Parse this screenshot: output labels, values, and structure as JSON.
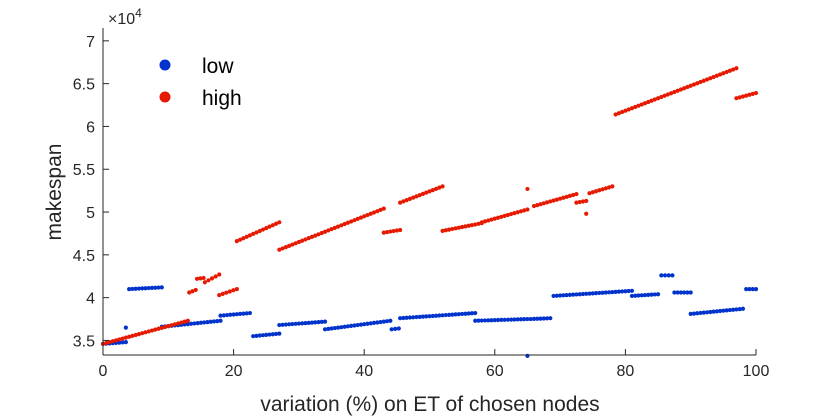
{
  "chart_data": {
    "type": "scatter",
    "xlabel": "variation (%) on ET of chosen nodes",
    "ylabel": "makespan",
    "exponent_label": "×10",
    "exponent_power": "4",
    "xlim": [
      0,
      100
    ],
    "ylim": [
      33300,
      71500
    ],
    "xticks": [
      0,
      20,
      40,
      60,
      80,
      100
    ],
    "xtick_labels": [
      "0",
      "20",
      "40",
      "60",
      "80",
      "100"
    ],
    "yticks": [
      35000,
      40000,
      45000,
      50000,
      55000,
      60000,
      65000,
      70000
    ],
    "ytick_labels": [
      "3.5",
      "4",
      "4.5",
      "5",
      "5.5",
      "6",
      "6.5",
      "7"
    ],
    "grid": false,
    "legend_position": "top-left",
    "series": [
      {
        "name": "low",
        "color": "#0033cc",
        "segments": [
          {
            "x": [
              0,
              3.5
            ],
            "y": [
              34600,
              34800
            ]
          },
          {
            "x": [
              4,
              9
            ],
            "y": [
              41000,
              41200
            ]
          },
          {
            "x": [
              9,
              18
            ],
            "y": [
              36600,
              37300
            ]
          },
          {
            "x": [
              18,
              22.5
            ],
            "y": [
              37900,
              38200
            ]
          },
          {
            "x": [
              23,
              27
            ],
            "y": [
              35500,
              35800
            ]
          },
          {
            "x": [
              27,
              34
            ],
            "y": [
              36800,
              37200
            ]
          },
          {
            "x": [
              34,
              44
            ],
            "y": [
              36300,
              37300
            ]
          },
          {
            "x": [
              44.2,
              45.3
            ],
            "y": [
              36300,
              36400
            ]
          },
          {
            "x": [
              45.5,
              57
            ],
            "y": [
              37600,
              38200
            ]
          },
          {
            "x": [
              57,
              65
            ],
            "y": [
              37300,
              37500
            ]
          },
          {
            "x": [
              65.5,
              68.5
            ],
            "y": [
              37500,
              37600
            ]
          },
          {
            "x": [
              69,
              81
            ],
            "y": [
              40200,
              40800
            ]
          },
          {
            "x": [
              81,
              85
            ],
            "y": [
              40200,
              40400
            ]
          },
          {
            "x": [
              85.5,
              87.2
            ],
            "y": [
              42600,
              42600
            ]
          },
          {
            "x": [
              87.5,
              90
            ],
            "y": [
              40600,
              40600
            ]
          },
          {
            "x": [
              90,
              98
            ],
            "y": [
              38100,
              38700
            ]
          },
          {
            "x": [
              98.5,
              100
            ],
            "y": [
              41000,
              41000
            ]
          }
        ],
        "points": [
          {
            "x": 3.5,
            "y": 36500
          },
          {
            "x": 65,
            "y": 33200
          }
        ]
      },
      {
        "name": "high",
        "color": "#e61a00",
        "segments": [
          {
            "x": [
              0,
              13
            ],
            "y": [
              34600,
              37300
            ]
          },
          {
            "x": [
              13.2,
              14.2
            ],
            "y": [
              40600,
              40900
            ]
          },
          {
            "x": [
              14.4,
              15.4
            ],
            "y": [
              42200,
              42300
            ]
          },
          {
            "x": [
              15.6,
              17.8
            ],
            "y": [
              41800,
              42700
            ]
          },
          {
            "x": [
              17.8,
              20.5
            ],
            "y": [
              40300,
              41000
            ]
          },
          {
            "x": [
              20.5,
              27
            ],
            "y": [
              46600,
              48800
            ]
          },
          {
            "x": [
              27,
              43
            ],
            "y": [
              45600,
              50400
            ]
          },
          {
            "x": [
              43,
              45.5
            ],
            "y": [
              47600,
              47900
            ]
          },
          {
            "x": [
              45.5,
              52
            ],
            "y": [
              51100,
              53000
            ]
          },
          {
            "x": [
              52,
              58
            ],
            "y": [
              47800,
              48700
            ]
          },
          {
            "x": [
              58,
              65
            ],
            "y": [
              48800,
              50300
            ]
          },
          {
            "x": [
              66,
              72.5
            ],
            "y": [
              50700,
              52100
            ]
          },
          {
            "x": [
              72.5,
              74
            ],
            "y": [
              51100,
              51300
            ]
          },
          {
            "x": [
              74.5,
              78
            ],
            "y": [
              52200,
              53000
            ]
          },
          {
            "x": [
              78.5,
              97
            ],
            "y": [
              61400,
              66800
            ]
          },
          {
            "x": [
              97,
              100
            ],
            "y": [
              63300,
              63900
            ]
          }
        ],
        "points": [
          {
            "x": 65,
            "y": 52700
          },
          {
            "x": 74,
            "y": 49800
          }
        ]
      }
    ]
  }
}
